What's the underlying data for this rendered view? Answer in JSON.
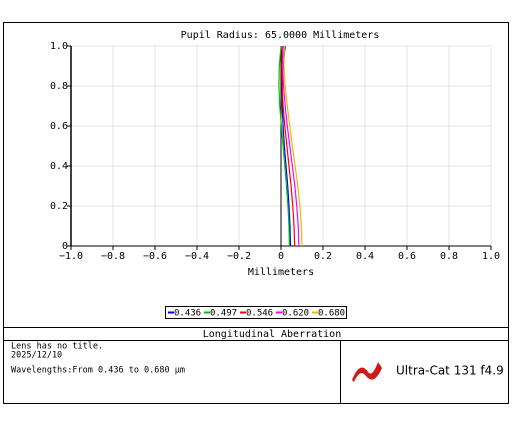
{
  "chart_data": {
    "type": "line",
    "title": "Pupil Radius: 65.0000 Millimeters",
    "x_label": "Millimeters",
    "y": [
      0,
      0.1,
      0.2,
      0.3,
      0.4,
      0.5,
      0.6,
      0.7,
      0.8,
      0.9,
      1.0
    ],
    "series": [
      {
        "name": "0.436",
        "color": "#0000ff",
        "values": [
          0.045,
          0.043,
          0.038,
          0.032,
          0.024,
          0.016,
          0.01,
          0.006,
          0.006,
          0.01,
          0.02
        ]
      },
      {
        "name": "0.497",
        "color": "#00c000",
        "values": [
          0.04,
          0.038,
          0.033,
          0.026,
          0.018,
          0.01,
          0.002,
          -0.006,
          -0.01,
          -0.008,
          0
        ]
      },
      {
        "name": "0.546",
        "color": "#ff0000",
        "values": [
          0.065,
          0.062,
          0.056,
          0.048,
          0.038,
          0.028,
          0.018,
          0.01,
          0.005,
          0.004,
          0.006
        ]
      },
      {
        "name": "0.620",
        "color": "#ff00ff",
        "values": [
          0.085,
          0.082,
          0.075,
          0.066,
          0.054,
          0.042,
          0.03,
          0.02,
          0.012,
          0.008,
          0.01
        ]
      },
      {
        "name": "0.680",
        "color": "#e0c000",
        "values": [
          0.1,
          0.097,
          0.09,
          0.08,
          0.067,
          0.054,
          0.042,
          0.03,
          0.02,
          0.014,
          0.016
        ]
      }
    ],
    "xlim": [
      -1,
      1
    ],
    "ylim": [
      0,
      1
    ],
    "xticks": [
      {
        "value": -1,
        "label": "−1.0"
      },
      {
        "value": -0.8,
        "label": "−0.8"
      },
      {
        "value": -0.6,
        "label": "−0.6"
      },
      {
        "value": -0.4,
        "label": "−0.4"
      },
      {
        "value": -0.2,
        "label": "−0.2"
      },
      0,
      0.2,
      0.4,
      0.6,
      0.8,
      {
        "value": 1,
        "label": "1.0"
      }
    ],
    "yticks": [
      0,
      0.2,
      0.4,
      0.6,
      0.8,
      {
        "value": 1,
        "label": "1.0"
      }
    ],
    "grid": true
  },
  "footer": {
    "plot_name": "Longitudinal Aberration",
    "lens_title": "Lens has no title.",
    "date": "2025/12/10",
    "wavelengths": "Wavelengths:From 0.436 to 0.680 µm",
    "product": "Ultra-Cat 131 f4.9"
  }
}
